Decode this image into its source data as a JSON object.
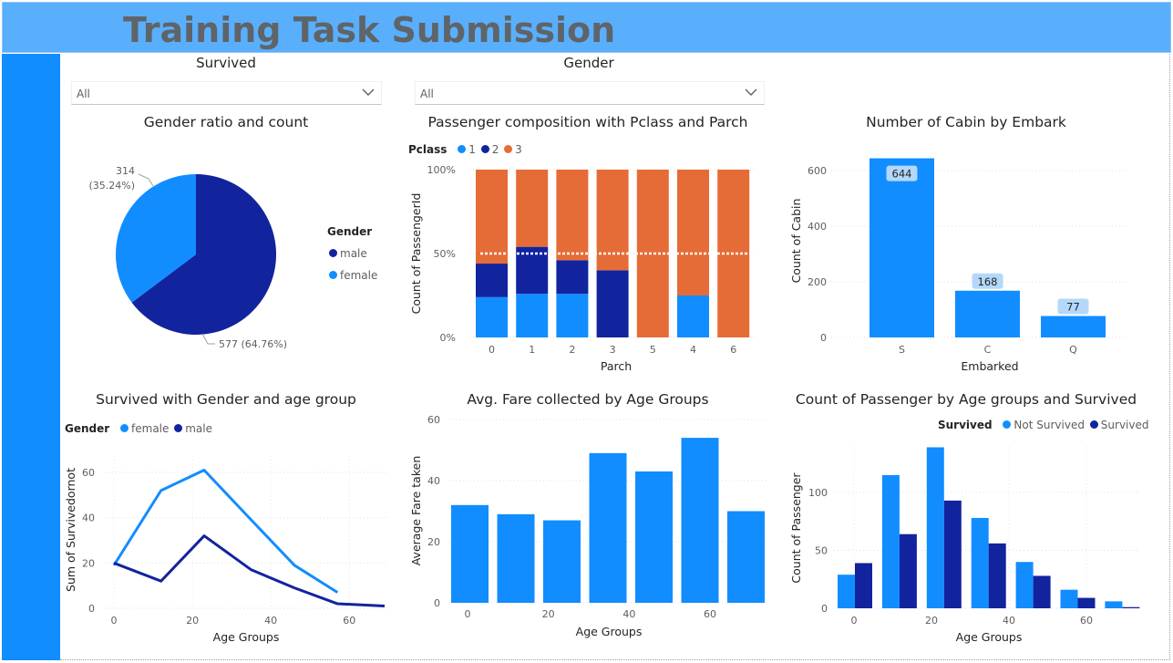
{
  "header": {
    "title": "Training Task Submission"
  },
  "colors": {
    "light_blue": "#118dff",
    "dark_blue": "#12239e",
    "orange": "#e66c37",
    "header_bg": "#5aaffc"
  },
  "slicers": [
    {
      "title": "Survived",
      "value": "All",
      "icon": "chevron-down-icon"
    },
    {
      "title": "Gender",
      "value": "All",
      "icon": "chevron-down-icon"
    }
  ],
  "charts": {
    "gender_pie": {
      "title": "Gender ratio and count",
      "legend_title": "Gender",
      "legend": [
        "male",
        "female"
      ],
      "label_female_count": "314",
      "label_female_pct": "(35.24%)",
      "label_male": "577 (64.76%)"
    },
    "pclass_parch": {
      "title": "Passenger composition with Pclass and Parch",
      "legend_title": "Pclass",
      "legend": [
        "1",
        "2",
        "3"
      ],
      "xlabel": "Parch",
      "ylabel": "Count of PassengerId",
      "yticks": [
        "0%",
        "50%",
        "100%"
      ]
    },
    "cabin_embark": {
      "title": "Number of Cabin by Embark",
      "xlabel": "Embarked",
      "ylabel": "Count of Cabin",
      "yticks": [
        "0",
        "200",
        "400",
        "600"
      ]
    },
    "survived_gender_age": {
      "title": "Survived with Gender and age group",
      "legend_title": "Gender",
      "legend": [
        "female",
        "male"
      ],
      "xlabel": "Age Groups",
      "ylabel": "Sum of Survivedornot",
      "yticks": [
        "0",
        "20",
        "40",
        "60"
      ],
      "xticks": [
        "0",
        "20",
        "40",
        "60"
      ]
    },
    "avg_fare": {
      "title": "Avg. Fare collected by Age Groups",
      "xlabel": "Age Groups",
      "ylabel": "Average Fare taken",
      "yticks": [
        "0",
        "20",
        "40",
        "60"
      ],
      "xticks": [
        "0",
        "20",
        "40",
        "60"
      ]
    },
    "count_age_survived": {
      "title": "Count of Passenger by Age groups and Survived",
      "legend_title": "Survived",
      "legend": [
        "Not Survived",
        "Survived"
      ],
      "xlabel": "Age Groups",
      "ylabel": "Count of Passenger",
      "yticks": [
        "0",
        "50",
        "100"
      ],
      "xticks": [
        "0",
        "20",
        "40",
        "60"
      ]
    }
  },
  "chart_data": [
    {
      "type": "pie",
      "title": "Gender ratio and count",
      "categories": [
        "male",
        "female"
      ],
      "values": [
        577,
        314
      ],
      "percentages": [
        64.76,
        35.24
      ],
      "legend": "right"
    },
    {
      "type": "bar",
      "stacked": "100%",
      "title": "Passenger composition with Pclass and Parch",
      "categories": [
        "0",
        "1",
        "2",
        "3",
        "5",
        "4",
        "6"
      ],
      "series": [
        {
          "name": "1",
          "values": [
            24,
            26,
            26,
            0,
            0,
            25,
            0
          ]
        },
        {
          "name": "2",
          "values": [
            20,
            28,
            20,
            40,
            0,
            0,
            0
          ]
        },
        {
          "name": "3",
          "values": [
            56,
            46,
            54,
            60,
            100,
            75,
            100
          ]
        }
      ],
      "reference_line": 50,
      "xlabel": "Parch",
      "ylabel": "Count of PassengerId",
      "ylim": [
        0,
        100
      ]
    },
    {
      "type": "bar",
      "title": "Number of Cabin by Embark",
      "categories": [
        "S",
        "C",
        "Q"
      ],
      "values": [
        644,
        168,
        77
      ],
      "data_labels": [
        "644",
        "168",
        "77"
      ],
      "xlabel": "Embarked",
      "ylabel": "Count of Cabin",
      "ylim": [
        0,
        650
      ]
    },
    {
      "type": "line",
      "title": "Survived with Gender and age group",
      "series": [
        {
          "name": "female",
          "x": [
            0,
            12,
            23,
            35,
            46,
            57
          ],
          "values": [
            19,
            52,
            61,
            39,
            19,
            7
          ]
        },
        {
          "name": "male",
          "x": [
            0,
            12,
            23,
            35,
            46,
            57,
            69
          ],
          "values": [
            20,
            12,
            32,
            17,
            9,
            2,
            1
          ]
        }
      ],
      "xlabel": "Age Groups",
      "ylabel": "Sum of Survivedornot",
      "xlim": [
        0,
        69
      ],
      "ylim": [
        0,
        68
      ]
    },
    {
      "type": "bar",
      "title": "Avg. Fare collected by Age Groups",
      "x": [
        0,
        11.5,
        23,
        34.5,
        46,
        57.5,
        69
      ],
      "values": [
        32,
        29,
        27,
        49,
        43,
        54,
        30
      ],
      "xlabel": "Age Groups",
      "ylabel": "Average Fare taken",
      "ylim": [
        0,
        60
      ]
    },
    {
      "type": "bar",
      "title": "Count of Passenger by Age groups and Survived",
      "x": [
        0,
        11.5,
        23,
        34.5,
        46,
        57.5,
        69
      ],
      "series": [
        {
          "name": "Not Survived",
          "values": [
            29,
            115,
            139,
            78,
            40,
            16,
            6
          ]
        },
        {
          "name": "Survived",
          "values": [
            39,
            64,
            93,
            56,
            28,
            9,
            1
          ]
        }
      ],
      "xlabel": "Age Groups",
      "ylabel": "Count of Passenger",
      "ylim": [
        0,
        140
      ]
    }
  ]
}
